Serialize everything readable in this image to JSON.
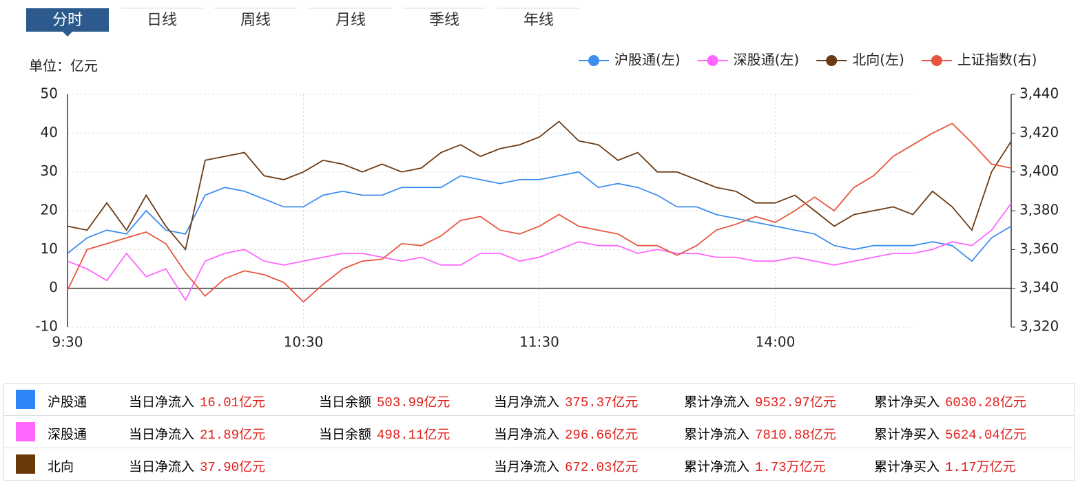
{
  "tabs": [
    "分时",
    "日线",
    "周线",
    "月线",
    "季线",
    "年线"
  ],
  "chart_data": {
    "type": "line",
    "unit_label": "单位：亿元",
    "x": [
      0,
      5,
      10,
      15,
      20,
      25,
      30,
      35,
      40,
      45,
      50,
      55,
      60,
      65,
      70,
      75,
      80,
      85,
      90,
      95,
      100,
      105,
      110,
      115,
      120,
      125,
      130,
      135,
      140,
      145,
      150,
      155,
      160,
      165,
      170,
      175,
      180,
      185,
      190,
      195,
      200,
      205,
      210,
      215,
      220,
      225,
      230,
      235,
      240
    ],
    "xlim": [
      0,
      240
    ],
    "xticks": [
      {
        "value": 0,
        "label": "9:30"
      },
      {
        "value": 60,
        "label": "10:30"
      },
      {
        "value": 120,
        "label": "11:30"
      },
      {
        "value": 180,
        "label": "14:00"
      }
    ],
    "ylim": [
      -10,
      50
    ],
    "yticks": [
      -10,
      0,
      10,
      20,
      30,
      40,
      50
    ],
    "y2lim": [
      3320,
      3440
    ],
    "y2ticks": [
      {
        "value": 3320,
        "label": "3,320"
      },
      {
        "value": 3340,
        "label": "3,340"
      },
      {
        "value": 3360,
        "label": "3,360"
      },
      {
        "value": 3380,
        "label": "3,380"
      },
      {
        "value": 3400,
        "label": "3,400"
      },
      {
        "value": 3420,
        "label": "3,420"
      },
      {
        "value": 3440,
        "label": "3,440"
      }
    ],
    "grid": true,
    "series": [
      {
        "name": "沪股通(左)",
        "color": "#3d8ef0",
        "values": [
          9,
          13,
          15,
          14,
          20,
          15,
          14,
          24,
          26,
          25,
          23,
          21,
          21,
          24,
          25,
          24,
          24,
          26,
          26,
          26,
          29,
          28,
          27,
          28,
          28,
          29,
          30,
          26,
          27,
          26,
          24,
          21,
          21,
          19,
          18,
          17,
          16,
          15,
          14,
          11,
          10,
          11,
          11,
          11,
          12,
          11,
          7,
          13,
          16.01
        ]
      },
      {
        "name": "深股通(左)",
        "color": "#ff66ff",
        "values": [
          7,
          5,
          2,
          9,
          3,
          5,
          -3,
          7,
          9,
          10,
          7,
          6,
          7,
          8,
          9,
          9,
          8,
          7,
          8,
          6,
          6,
          9,
          9,
          7,
          8,
          10,
          12,
          11,
          11,
          9,
          10,
          9,
          9,
          8,
          8,
          7,
          7,
          8,
          7,
          6,
          7,
          8,
          9,
          9,
          10,
          12,
          11,
          15,
          21.89
        ]
      },
      {
        "name": "北向(左)",
        "color": "#6b3a12",
        "values": [
          16,
          15,
          22,
          15,
          24,
          16,
          10,
          33,
          34,
          35,
          29,
          28,
          30,
          33,
          32,
          30,
          32,
          30,
          31,
          35,
          37,
          34,
          36,
          37,
          39,
          43,
          38,
          37,
          33,
          35,
          30,
          30,
          28,
          26,
          25,
          22,
          22,
          24,
          20,
          16,
          19,
          20,
          21,
          19,
          25,
          21,
          15,
          30,
          37.9
        ]
      },
      {
        "name": "上证指数(右)",
        "color": "#e8553d",
        "axis": "y2",
        "values": [
          3339,
          3360,
          3363,
          3366,
          3369,
          3363,
          3348,
          3336,
          3345,
          3349,
          3347,
          3343,
          3333,
          3342,
          3350,
          3354,
          3355,
          3363,
          3362,
          3367,
          3375,
          3377,
          3370,
          3368,
          3372,
          3378,
          3372,
          3370,
          3368,
          3362,
          3362,
          3357,
          3362,
          3370,
          3373,
          3377,
          3374,
          3380,
          3387,
          3380,
          3392,
          3398,
          3408,
          3414,
          3420,
          3425,
          3415,
          3404,
          3402
        ]
      }
    ]
  },
  "table": {
    "rows": [
      {
        "name": "沪股通",
        "color": "#2d87f8",
        "cells": [
          {
            "label": "当日净流入",
            "value": "16.01亿元"
          },
          {
            "label": "当日余额",
            "value": "503.99亿元"
          },
          {
            "label": "当月净流入",
            "value": "375.37亿元"
          },
          {
            "label": "累计净流入",
            "value": "9532.97亿元"
          },
          {
            "label": "累计净买入",
            "value": "6030.28亿元"
          }
        ]
      },
      {
        "name": "深股通",
        "color": "#ff66ff",
        "cells": [
          {
            "label": "当日净流入",
            "value": "21.89亿元"
          },
          {
            "label": "当日余额",
            "value": "498.11亿元"
          },
          {
            "label": "当月净流入",
            "value": "296.66亿元"
          },
          {
            "label": "累计净流入",
            "value": "7810.88亿元"
          },
          {
            "label": "累计净买入",
            "value": "5624.04亿元"
          }
        ]
      },
      {
        "name": "北向",
        "color": "#6b3a0a",
        "cells": [
          {
            "label": "当日净流入",
            "value": "37.90亿元"
          },
          null,
          {
            "label": "当月净流入",
            "value": "672.03亿元"
          },
          {
            "label": "累计净流入",
            "value": "1.73万亿元"
          },
          {
            "label": "累计净买入",
            "value": "1.17万亿元"
          }
        ]
      }
    ]
  }
}
